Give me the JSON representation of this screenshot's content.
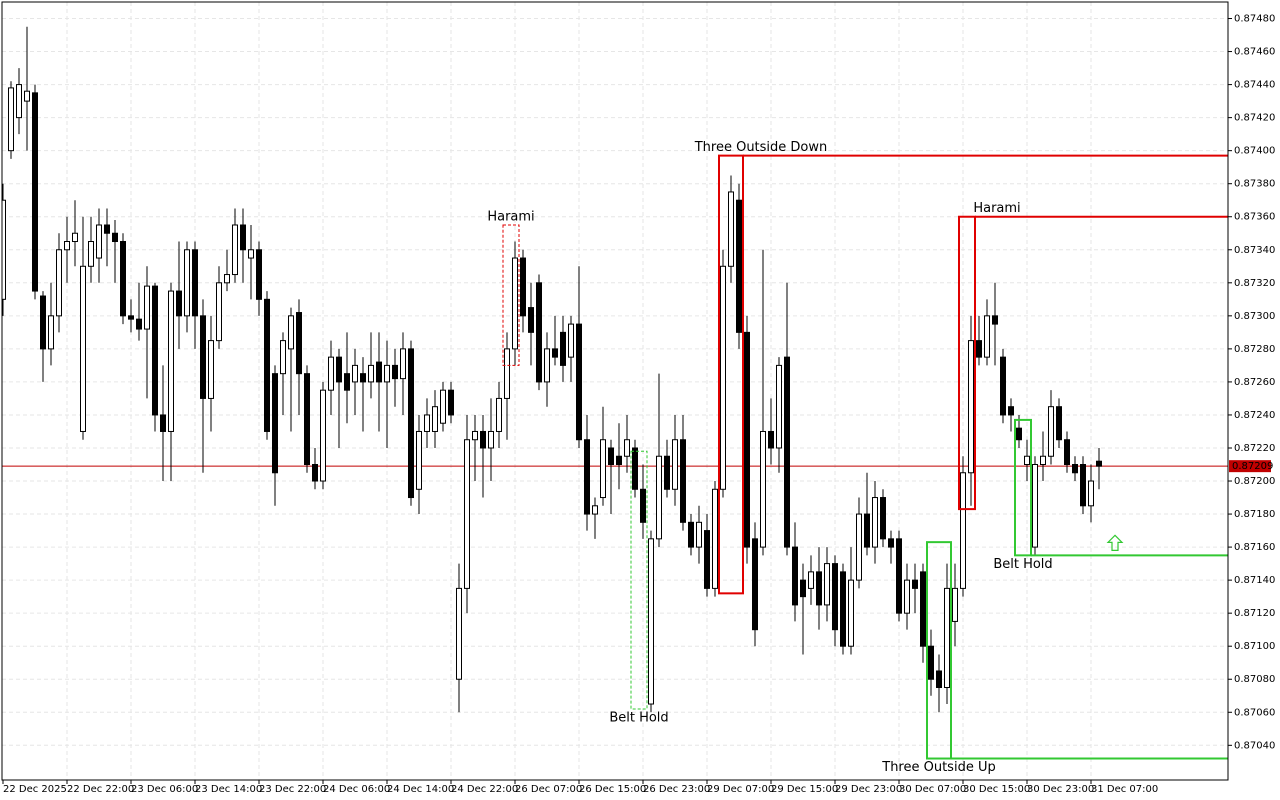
{
  "chart_data": {
    "type": "candlestick",
    "categories": [
      "22 Dec 2025",
      null,
      null,
      null,
      null,
      null,
      null,
      null,
      "22 Dec 22:00",
      null,
      null,
      null,
      null,
      null,
      null,
      null,
      "23 Dec 06:00",
      null,
      null,
      null,
      null,
      null,
      null,
      null,
      "23 Dec 14:00",
      null,
      null,
      null,
      null,
      null,
      null,
      null,
      "23 Dec 22:00",
      null,
      null,
      null,
      null,
      null,
      null,
      null,
      "24 Dec 06:00",
      null,
      null,
      null,
      null,
      null,
      null,
      null,
      "24 Dec 14:00",
      null,
      null,
      null,
      null,
      null,
      null,
      null,
      "24 Dec 22:00",
      null,
      null,
      null,
      null,
      null,
      null,
      null,
      "26 Dec 07:00",
      null,
      null,
      null,
      null,
      null,
      null,
      null,
      "26 Dec 15:00",
      null,
      null,
      null,
      null,
      null,
      null,
      null,
      "26 Dec 23:00",
      null,
      null,
      null,
      null,
      null,
      null,
      null,
      "29 Dec 07:00",
      null,
      null,
      null,
      null,
      null,
      null,
      null,
      "29 Dec 15:00",
      null,
      null,
      null,
      null,
      null,
      null,
      null,
      "29 Dec 23:00",
      null,
      null,
      null,
      null,
      null,
      null,
      null,
      "30 Dec 07:00",
      null,
      null,
      null,
      null,
      null,
      null,
      null,
      "30 Dec 15:00",
      null,
      null,
      null,
      null,
      null,
      null,
      null,
      "30 Dec 23:00",
      null,
      null,
      null,
      null,
      null,
      null,
      null,
      "31 Dec 07:00",
      null
    ],
    "open": [
      0.8731,
      0.874,
      0.8742,
      0.8743,
      0.87435,
      0.87312,
      0.8728,
      0.873,
      0.8734,
      0.87345,
      0.8723,
      0.8733,
      0.87335,
      0.87355,
      0.8735,
      0.87345,
      0.873,
      0.87298,
      0.87292,
      0.87318,
      0.8724,
      0.8723,
      0.87315,
      0.873,
      0.8734,
      0.873,
      0.8725,
      0.87285,
      0.8732,
      0.87325,
      0.87355,
      0.87335,
      0.8734,
      0.8731,
      0.87265,
      0.87265,
      0.8728,
      0.87302,
      0.87265,
      0.8721,
      0.872,
      0.87255,
      0.87275,
      0.87265,
      0.8726,
      0.87265,
      0.8726,
      0.87272,
      0.8726,
      0.8727,
      0.87262,
      0.8728,
      0.87195,
      0.8723,
      0.8723,
      0.87235,
      0.87255,
      0.8708,
      0.87135,
      0.87225,
      0.8723,
      0.8722,
      0.8723,
      0.8725,
      0.8728,
      0.87335,
      0.87305,
      0.8732,
      0.8726,
      0.8728,
      0.8729,
      0.87275,
      0.87295,
      0.87225,
      0.8718,
      0.8719,
      0.8722,
      0.87215,
      0.87215,
      0.8722,
      0.87195,
      0.87065,
      0.87165,
      0.87215,
      0.87195,
      0.87225,
      0.87175,
      0.8716,
      0.8717,
      0.87135,
      0.87195,
      0.8733,
      0.8737,
      0.8729,
      0.87165,
      0.8716,
      0.8723,
      0.8722,
      0.87275,
      0.8716,
      0.8714,
      0.87135,
      0.87145,
      0.87125,
      0.8715,
      0.87145,
      0.871,
      0.8714,
      0.8718,
      0.8716,
      0.8719,
      0.87165,
      0.87165,
      0.8712,
      0.8714,
      0.87145,
      0.871,
      0.87085,
      0.87075,
      0.87115,
      0.87135,
      0.87205,
      0.87285,
      0.87275,
      0.873,
      0.87275,
      0.87245,
      0.87232,
      0.8721,
      0.8716,
      0.8721,
      0.87215,
      0.87245,
      0.87225,
      0.8721,
      0.8721,
      0.87185,
      0.87212
    ],
    "high": [
      0.8738,
      0.87442,
      0.8745,
      0.87475,
      0.8744,
      0.87315,
      0.8732,
      0.8735,
      0.8736,
      0.8737,
      0.8736,
      0.8736,
      0.87365,
      0.87365,
      0.87358,
      0.8735,
      0.8731,
      0.8732,
      0.8733,
      0.8732,
      0.8727,
      0.8732,
      0.87345,
      0.87345,
      0.87345,
      0.8731,
      0.873,
      0.8733,
      0.8734,
      0.87365,
      0.87365,
      0.87355,
      0.87345,
      0.87315,
      0.8727,
      0.8729,
      0.87305,
      0.8731,
      0.8727,
      0.8722,
      0.8726,
      0.87285,
      0.8728,
      0.8729,
      0.8728,
      0.87275,
      0.8729,
      0.8729,
      0.87285,
      0.8728,
      0.8729,
      0.87285,
      0.8724,
      0.8725,
      0.87255,
      0.8726,
      0.8726,
      0.8715,
      0.8724,
      0.8724,
      0.8724,
      0.8725,
      0.8726,
      0.8729,
      0.87345,
      0.8734,
      0.8732,
      0.87325,
      0.8729,
      0.873,
      0.873,
      0.873,
      0.8733,
      0.8724,
      0.8719,
      0.87245,
      0.87225,
      0.87235,
      0.8724,
      0.87225,
      0.8721,
      0.8717,
      0.87265,
      0.87225,
      0.8724,
      0.8724,
      0.8718,
      0.87185,
      0.8718,
      0.872,
      0.8734,
      0.87385,
      0.8738,
      0.873,
      0.87175,
      0.8734,
      0.8725,
      0.87275,
      0.8732,
      0.87175,
      0.8715,
      0.87155,
      0.8716,
      0.8716,
      0.87155,
      0.8715,
      0.8716,
      0.8719,
      0.87205,
      0.872,
      0.87195,
      0.8717,
      0.8717,
      0.8715,
      0.8715,
      0.8715,
      0.8711,
      0.87095,
      0.8715,
      0.8715,
      0.87215,
      0.873,
      0.873,
      0.8731,
      0.8732,
      0.8728,
      0.8725,
      0.8724,
      0.87225,
      0.87215,
      0.8723,
      0.87255,
      0.8725,
      0.8723,
      0.87215,
      0.87215,
      0.8721,
      0.8722
    ],
    "low": [
      0.873,
      0.87395,
      0.8741,
      0.874,
      0.8731,
      0.8726,
      0.8727,
      0.8729,
      0.8732,
      0.8733,
      0.87225,
      0.8732,
      0.8732,
      0.8733,
      0.8732,
      0.87295,
      0.8729,
      0.87285,
      0.8725,
      0.8723,
      0.872,
      0.872,
      0.8728,
      0.8729,
      0.8728,
      0.87205,
      0.8723,
      0.8728,
      0.87315,
      0.8732,
      0.8732,
      0.8731,
      0.873,
      0.87225,
      0.87185,
      0.8724,
      0.8723,
      0.8724,
      0.87205,
      0.87195,
      0.87195,
      0.8724,
      0.8722,
      0.87235,
      0.8724,
      0.8723,
      0.8725,
      0.8723,
      0.8722,
      0.87245,
      0.8724,
      0.87185,
      0.8718,
      0.8722,
      0.8722,
      0.8723,
      0.87235,
      0.8706,
      0.8712,
      0.872,
      0.8719,
      0.872,
      0.8722,
      0.87225,
      0.8727,
      0.8729,
      0.8727,
      0.87255,
      0.87245,
      0.8727,
      0.8726,
      0.8726,
      0.8722,
      0.8717,
      0.87165,
      0.87185,
      0.8718,
      0.87195,
      0.87205,
      0.8719,
      0.87165,
      0.8706,
      0.8716,
      0.8719,
      0.87185,
      0.8717,
      0.87155,
      0.8715,
      0.8713,
      0.8713,
      0.8719,
      0.8732,
      0.8728,
      0.8715,
      0.871,
      0.87155,
      0.8721,
      0.87205,
      0.87155,
      0.87115,
      0.87095,
      0.87125,
      0.8711,
      0.87115,
      0.871,
      0.87095,
      0.87095,
      0.87135,
      0.87155,
      0.8715,
      0.8716,
      0.8715,
      0.87115,
      0.8711,
      0.8712,
      0.8709,
      0.8707,
      0.8706,
      0.87065,
      0.871,
      0.8713,
      0.87185,
      0.8727,
      0.8727,
      0.8727,
      0.87235,
      0.8723,
      0.8722,
      0.872,
      0.87155,
      0.872,
      0.8721,
      0.8722,
      0.87205,
      0.872,
      0.8718,
      0.87175,
      0.87195
    ],
    "close": [
      0.8737,
      0.87438,
      0.8744,
      0.87436,
      0.87315,
      0.8728,
      0.873,
      0.8734,
      0.87345,
      0.8735,
      0.8733,
      0.87345,
      0.87355,
      0.8735,
      0.87345,
      0.873,
      0.87298,
      0.87292,
      0.87318,
      0.8724,
      0.8723,
      0.87315,
      0.873,
      0.8734,
      0.873,
      0.8725,
      0.87285,
      0.8732,
      0.87325,
      0.87355,
      0.8734,
      0.8734,
      0.8731,
      0.8723,
      0.87205,
      0.87285,
      0.873,
      0.87265,
      0.8721,
      0.872,
      0.87255,
      0.87275,
      0.8726,
      0.87255,
      0.8727,
      0.8726,
      0.8727,
      0.8726,
      0.8727,
      0.87262,
      0.8728,
      0.8719,
      0.8723,
      0.8724,
      0.87245,
      0.87255,
      0.8724,
      0.87135,
      0.87225,
      0.8723,
      0.8722,
      0.8723,
      0.8725,
      0.8728,
      0.87335,
      0.873,
      0.8729,
      0.8726,
      0.8728,
      0.87275,
      0.8727,
      0.87295,
      0.87225,
      0.8718,
      0.87185,
      0.87225,
      0.8721,
      0.8721,
      0.87225,
      0.87195,
      0.87175,
      0.87165,
      0.87215,
      0.87195,
      0.87225,
      0.87175,
      0.8716,
      0.87175,
      0.87135,
      0.87195,
      0.8733,
      0.87375,
      0.8729,
      0.8716,
      0.8711,
      0.8723,
      0.8722,
      0.8727,
      0.8716,
      0.87125,
      0.8713,
      0.87145,
      0.87125,
      0.8715,
      0.8711,
      0.871,
      0.8714,
      0.8718,
      0.8716,
      0.8719,
      0.87165,
      0.8716,
      0.8712,
      0.8714,
      0.87135,
      0.871,
      0.8708,
      0.87075,
      0.87135,
      0.87135,
      0.87205,
      0.87285,
      0.87275,
      0.873,
      0.87295,
      0.8724,
      0.8724,
      0.87225,
      0.87215,
      0.8721,
      0.87215,
      0.87245,
      0.87225,
      0.8721,
      0.87205,
      0.87185,
      0.872,
      0.87209
    ],
    "ylim": [
      0.87019,
      0.8749
    ],
    "yticks": [
      {
        "value": 0.8748,
        "label": "0.87480"
      },
      {
        "value": 0.8746,
        "label": "0.87460"
      },
      {
        "value": 0.8744,
        "label": "0.87440"
      },
      {
        "value": 0.8742,
        "label": "0.87420"
      },
      {
        "value": 0.874,
        "label": "0.87400"
      },
      {
        "value": 0.8738,
        "label": "0.87380"
      },
      {
        "value": 0.8736,
        "label": "0.87360"
      },
      {
        "value": 0.8734,
        "label": "0.87340"
      },
      {
        "value": 0.8732,
        "label": "0.87320"
      },
      {
        "value": 0.873,
        "label": "0.87300"
      },
      {
        "value": 0.8728,
        "label": "0.87280"
      },
      {
        "value": 0.8726,
        "label": "0.87260"
      },
      {
        "value": 0.8724,
        "label": "0.87240"
      },
      {
        "value": 0.8722,
        "label": "0.87220"
      },
      {
        "value": 0.872,
        "label": "0.87200"
      },
      {
        "value": 0.8718,
        "label": "0.87180"
      },
      {
        "value": 0.8716,
        "label": "0.87160"
      },
      {
        "value": 0.8714,
        "label": "0.87140"
      },
      {
        "value": 0.8712,
        "label": "0.87120"
      },
      {
        "value": 0.871,
        "label": "0.87100"
      },
      {
        "value": 0.8708,
        "label": "0.87080"
      },
      {
        "value": 0.8706,
        "label": "0.87060"
      },
      {
        "value": 0.8704,
        "label": "0.87040"
      }
    ],
    "grid": true,
    "up_color": "#ffffff",
    "down_color": "#000000",
    "current_price": {
      "value": 0.87209,
      "label": "0.87209"
    },
    "current_price_color": "#c00000",
    "patterns": [
      {
        "name": "Harami",
        "color": "#e00000",
        "start": 63,
        "end": 64,
        "high": 0.87355,
        "low": 0.8727
      },
      {
        "name": "Three Outside Down",
        "color": "#e00000",
        "start": 90,
        "end": 92,
        "high": 0.87397,
        "low": 0.87132,
        "level": 0.87397
      },
      {
        "name": "Harami",
        "color": "#e00000",
        "start": 120,
        "end": 121,
        "high": 0.8736,
        "low": 0.87183,
        "level": 0.8736
      },
      {
        "name": "Belt Hold",
        "color": "#32c832",
        "start": 79,
        "end": 80,
        "high": 0.87218,
        "low": 0.87062
      },
      {
        "name": "Three Outside Up",
        "color": "#32c832",
        "start": 116,
        "end": 118,
        "high": 0.87163,
        "low": 0.87032,
        "level": 0.87032
      },
      {
        "name": "Belt Hold",
        "color": "#32c832",
        "start": 127,
        "end": 128,
        "high": 0.87237,
        "low": 0.87155,
        "level": 0.87155
      }
    ]
  }
}
